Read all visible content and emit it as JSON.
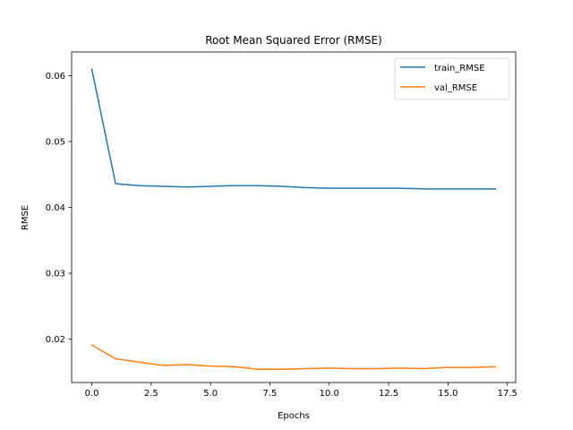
{
  "chart_data": {
    "type": "line",
    "title": "Root Mean Squared Error (RMSE)",
    "xlabel": "Epochs",
    "ylabel": "RMSE",
    "xlim": [
      -0.85,
      17.85
    ],
    "ylim": [
      0.0134,
      0.0636
    ],
    "xticks": [
      0.0,
      2.5,
      5.0,
      7.5,
      10.0,
      12.5,
      15.0,
      17.5
    ],
    "xtick_labels": [
      "0.0",
      "2.5",
      "5.0",
      "7.5",
      "10.0",
      "12.5",
      "15.0",
      "17.5"
    ],
    "yticks": [
      0.02,
      0.03,
      0.04,
      0.05,
      0.06
    ],
    "ytick_labels": [
      "0.02",
      "0.03",
      "0.04",
      "0.05",
      "0.06"
    ],
    "grid": false,
    "legend_position": "top-right",
    "x": [
      0,
      1,
      2,
      3,
      4,
      5,
      6,
      7,
      8,
      9,
      10,
      11,
      12,
      13,
      14,
      15,
      16,
      17
    ],
    "series": [
      {
        "name": "train_RMSE",
        "color": "#1f77b4",
        "values": [
          0.061,
          0.0436,
          0.0433,
          0.0432,
          0.0431,
          0.0432,
          0.0433,
          0.0433,
          0.0432,
          0.043,
          0.0429,
          0.0429,
          0.0429,
          0.0429,
          0.0428,
          0.0428,
          0.0428,
          0.0428
        ]
      },
      {
        "name": "val_RMSE",
        "color": "#ff7f0e",
        "values": [
          0.0191,
          0.017,
          0.0165,
          0.016,
          0.0161,
          0.0159,
          0.0158,
          0.0154,
          0.0154,
          0.0155,
          0.0156,
          0.0155,
          0.0155,
          0.0156,
          0.0155,
          0.0157,
          0.0157,
          0.0158
        ]
      }
    ]
  }
}
